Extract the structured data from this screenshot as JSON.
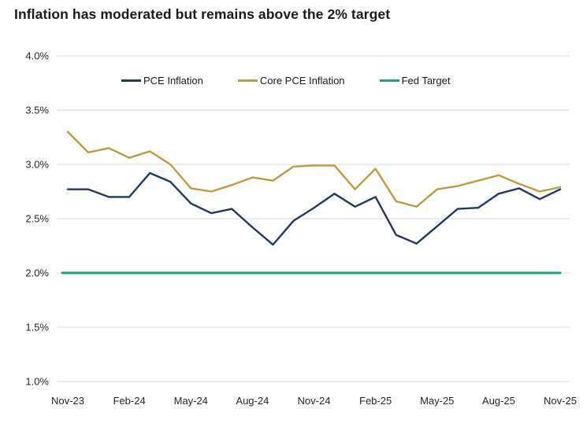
{
  "title": "Inflation has moderated but remains above the 2% target",
  "chart_data": {
    "type": "line",
    "x": [
      "Nov-23",
      "Dec-23",
      "Jan-24",
      "Feb-24",
      "Mar-24",
      "Apr-24",
      "May-24",
      "Jun-24",
      "Jul-24",
      "Aug-24",
      "Sep-24",
      "Oct-24",
      "Nov-24",
      "Dec-24",
      "Jan-25",
      "Feb-25",
      "Mar-25",
      "Apr-25",
      "May-25",
      "Jun-25",
      "Jul-25",
      "Aug-25",
      "Sep-25",
      "Oct-25",
      "Nov-25"
    ],
    "x_tick_labels": [
      "Nov-23",
      "Feb-24",
      "May-24",
      "Aug-24",
      "Nov-24",
      "Feb-25",
      "May-25",
      "Aug-25",
      "Nov-25"
    ],
    "series": [
      {
        "name": "PCE Inflation",
        "color": "#1f3864",
        "values": [
          2.77,
          2.77,
          2.7,
          2.7,
          2.92,
          2.84,
          2.64,
          2.55,
          2.59,
          2.42,
          2.26,
          2.48,
          2.6,
          2.73,
          2.61,
          2.7,
          2.35,
          2.27,
          2.43,
          2.59,
          2.6,
          2.73,
          2.78,
          2.68,
          2.77
        ]
      },
      {
        "name": "Core PCE Inflation",
        "color": "#c09a3e",
        "values": [
          3.3,
          3.11,
          3.15,
          3.06,
          3.12,
          3.0,
          2.78,
          2.75,
          2.81,
          2.88,
          2.85,
          2.98,
          2.99,
          2.99,
          2.77,
          2.96,
          2.66,
          2.61,
          2.77,
          2.8,
          2.85,
          2.9,
          2.82,
          2.75,
          2.79
        ]
      },
      {
        "name": "Fed Target",
        "color": "#16a67c",
        "values": [
          2.0,
          2.0,
          2.0,
          2.0,
          2.0,
          2.0,
          2.0,
          2.0,
          2.0,
          2.0,
          2.0,
          2.0,
          2.0,
          2.0,
          2.0,
          2.0,
          2.0,
          2.0,
          2.0,
          2.0,
          2.0,
          2.0,
          2.0,
          2.0,
          2.0
        ]
      }
    ],
    "y_tick_labels": [
      "4.0%",
      "3.5%",
      "3.0%",
      "2.5%",
      "2.0%",
      "1.5%",
      "1.0%"
    ],
    "y_tick_values": [
      4.0,
      3.5,
      3.0,
      2.5,
      2.0,
      1.5,
      1.0
    ],
    "ylim": [
      1.0,
      4.0
    ],
    "grid": "horizontal-only",
    "legend_position": "top-inside",
    "grid_color": "#d9d9d9",
    "tick_label_color": "#262626",
    "background_color": "#ffffff"
  }
}
